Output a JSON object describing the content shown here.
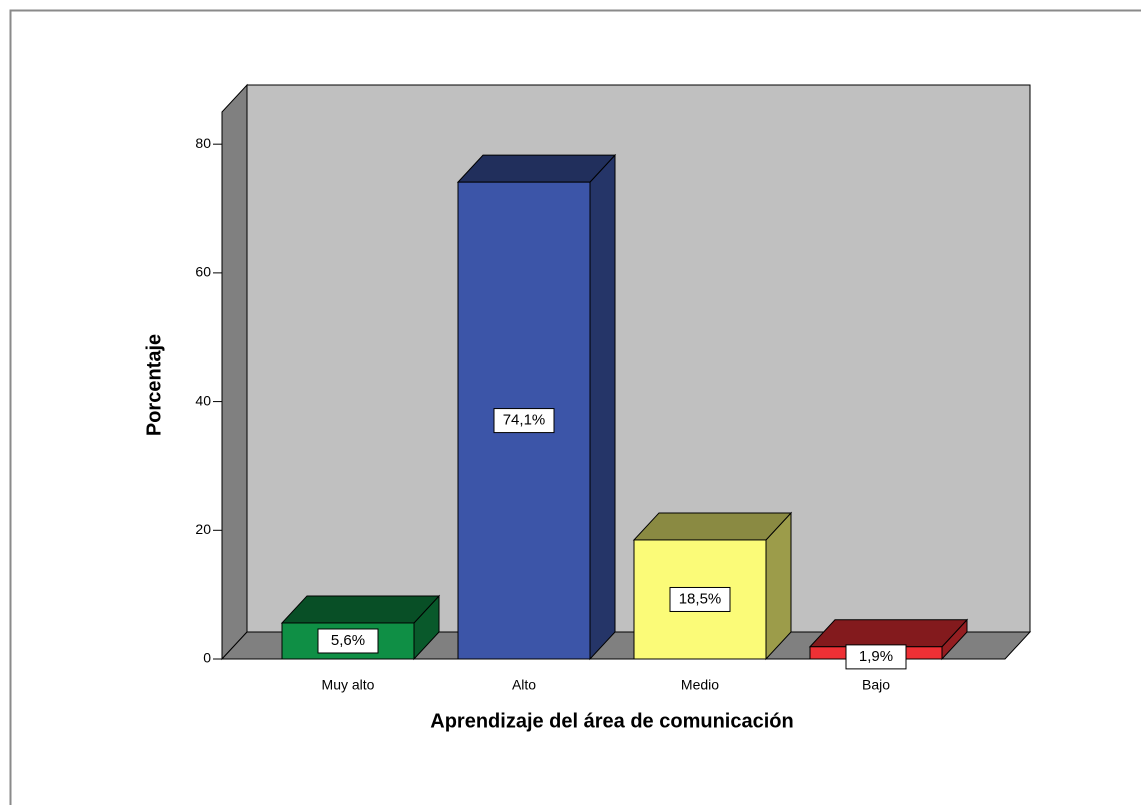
{
  "chart_data": {
    "type": "bar3d",
    "categories": [
      "Muy alto",
      "Alto",
      "Medio",
      "Bajo"
    ],
    "values": [
      5.6,
      74.1,
      18.5,
      1.9
    ],
    "value_labels": [
      "5,6%",
      "74,1%",
      "18,5%",
      "1,9%"
    ],
    "colors": [
      "#0f8f45",
      "#3c55a8",
      "#fbfb78",
      "#ee3035"
    ],
    "xlabel": "Aprendizaje del área de comunicación",
    "ylabel": "Porcentaje",
    "ylim": [
      0,
      85
    ],
    "yticks": [
      0,
      20,
      40,
      60,
      80
    ]
  }
}
